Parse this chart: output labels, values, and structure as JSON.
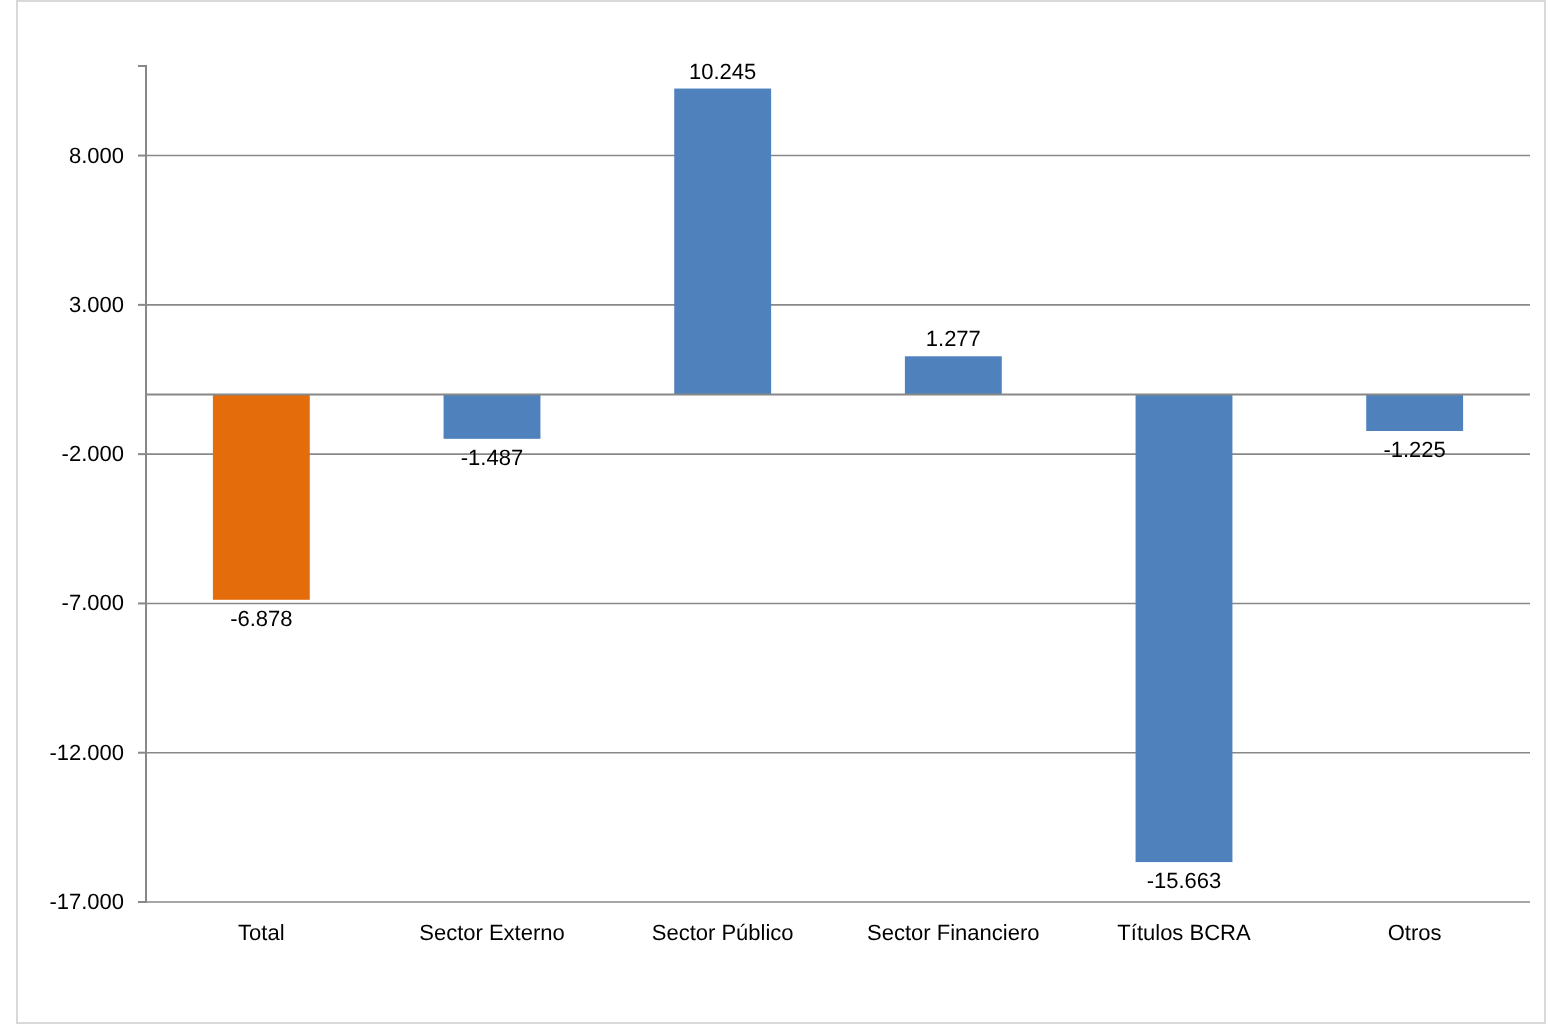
{
  "chart_data": {
    "type": "bar",
    "categories": [
      "Total",
      "Sector Externo",
      "Sector Público",
      "Sector Financiero",
      "Títulos BCRA",
      "Otros"
    ],
    "values": [
      -6878,
      -1487,
      10245,
      1277,
      -15663,
      -1225
    ],
    "colors": [
      "#e46c0a",
      "#4f81bd",
      "#4f81bd",
      "#4f81bd",
      "#4f81bd",
      "#4f81bd"
    ],
    "value_labels": [
      "-6.878",
      "-1.487",
      "10.245",
      "1.277",
      "-15.663",
      "-1.225"
    ],
    "ylim": [
      -17000,
      11000
    ],
    "yticks": [
      {
        "value": -17000,
        "label": "-17.000"
      },
      {
        "value": -12000,
        "label": "-12.000"
      },
      {
        "value": -7000,
        "label": "-7.000"
      },
      {
        "value": -2000,
        "label": "-2.000"
      },
      {
        "value": 3000,
        "label": "3.000"
      },
      {
        "value": 8000,
        "label": "8.000"
      }
    ],
    "grid": "y"
  }
}
